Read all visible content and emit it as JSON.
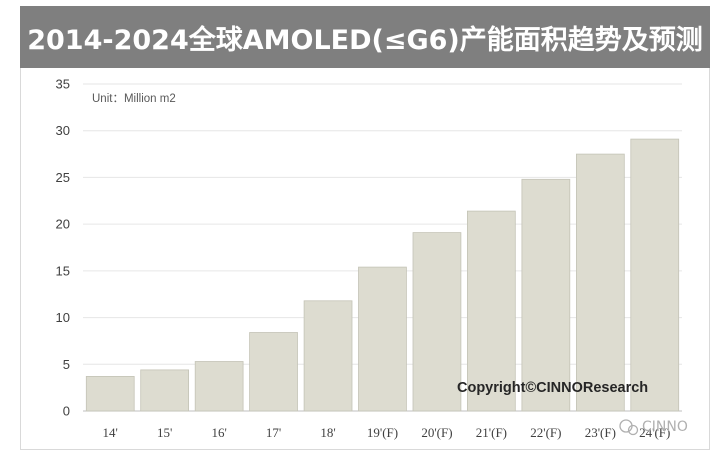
{
  "title": "2014-2024全球AMOLED(≤G6)产能面积趋势及预测",
  "unit_label": "Unit：Million m2",
  "copyright": "Copyright©CINNOResearch",
  "watermark": "CINNO",
  "colors": {
    "title_bg": "#7f7f7f",
    "bar_fill": "#dddcd0",
    "bar_stroke": "#c4c3b6",
    "gridline": "#e6e6e6"
  },
  "chart_data": {
    "type": "bar",
    "title": "2014-2024全球AMOLED(≤G6)产能面积趋势及预测",
    "ylabel": "Unit：Million m2",
    "categories": [
      "14'",
      "15'",
      "16'",
      "17'",
      "18'",
      "19'(F)",
      "20'(F)",
      "21'(F)",
      "22'(F)",
      "23'(F)",
      "24'(F)"
    ],
    "values": [
      3.7,
      4.4,
      5.3,
      8.4,
      11.8,
      15.4,
      19.1,
      21.4,
      24.8,
      27.5,
      29.1
    ],
    "ylim": [
      0,
      35
    ],
    "yticks": [
      0,
      5,
      10,
      15,
      20,
      25,
      30,
      35
    ],
    "grid": true,
    "legend": "none"
  }
}
